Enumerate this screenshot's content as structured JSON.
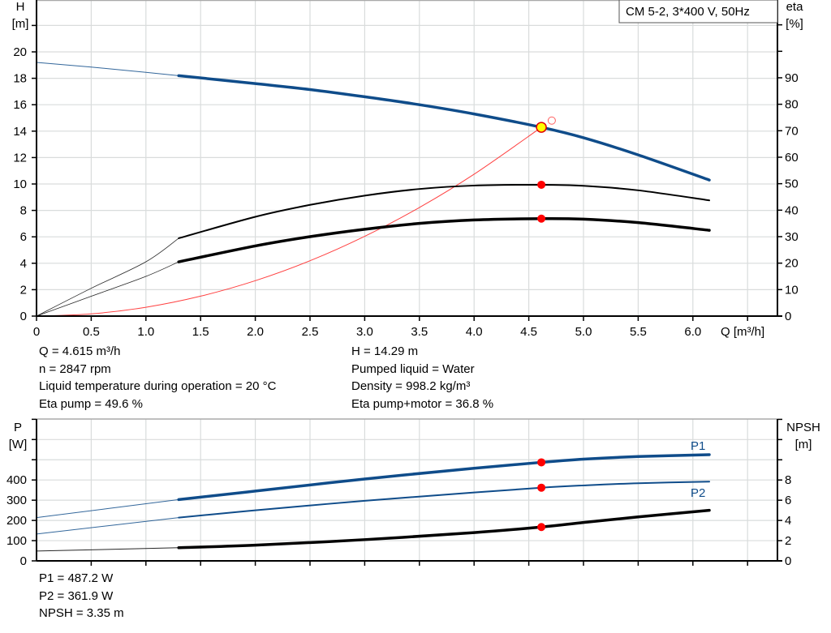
{
  "chart_data": [
    {
      "type": "line",
      "title": "CM 5-2, 3*400 V, 50Hz",
      "xlabel": "Q [m³/h]",
      "ylabel_left": [
        "H",
        "[m]"
      ],
      "ylabel_right": [
        "eta",
        "[%]"
      ],
      "xlim": [
        0,
        6.5
      ],
      "ylim_left": [
        0,
        22
      ],
      "ylim_right": [
        0,
        100
      ],
      "x_ticks": [
        "0",
        "0.5",
        "1.0",
        "1.5",
        "2.0",
        "2.5",
        "3.0",
        "3.5",
        "4.0",
        "4.5",
        "5.0",
        "5.5",
        "6.0"
      ],
      "y_ticks_left": [
        "0",
        "2",
        "4",
        "6",
        "8",
        "10",
        "12",
        "14",
        "16",
        "18",
        "20"
      ],
      "y_ticks_right": [
        "0",
        "10",
        "20",
        "30",
        "40",
        "50",
        "60",
        "70",
        "80",
        "90"
      ],
      "grid": true,
      "operating_range": [
        1.3,
        6.15
      ],
      "series": [
        {
          "axis": "left",
          "color": "#0f4c8a",
          "points": [
            [
              0,
              19.2
            ],
            [
              0.5,
              18.85
            ],
            [
              1.0,
              18.45
            ],
            [
              1.3,
              18.2
            ],
            [
              2,
              17.6
            ],
            [
              2.5,
              17.15
            ],
            [
              3,
              16.6
            ],
            [
              3.5,
              16.0
            ],
            [
              4,
              15.3
            ],
            [
              4.615,
              14.29
            ],
            [
              5,
              13.5
            ],
            [
              5.5,
              12.2
            ],
            [
              6.15,
              10.3
            ]
          ]
        },
        {
          "axis": "right",
          "color": "#000000",
          "points": [
            [
              0,
              0
            ],
            [
              0.5,
              10.5
            ],
            [
              1.0,
              20.5
            ],
            [
              1.3,
              29.4
            ],
            [
              2,
              37.5
            ],
            [
              2.5,
              42
            ],
            [
              3,
              45.5
            ],
            [
              3.5,
              48
            ],
            [
              4,
              49.3
            ],
            [
              4.615,
              49.6
            ],
            [
              5,
              49.2
            ],
            [
              5.5,
              47.5
            ],
            [
              6.15,
              43.7
            ]
          ]
        },
        {
          "axis": "right",
          "color": "#000000",
          "bold": true,
          "points": [
            [
              0,
              0
            ],
            [
              0.5,
              7.5
            ],
            [
              1,
              15
            ],
            [
              1.3,
              20.5
            ],
            [
              2,
              26.5
            ],
            [
              2.5,
              30
            ],
            [
              3,
              32.8
            ],
            [
              3.5,
              35
            ],
            [
              4,
              36.3
            ],
            [
              4.615,
              36.8
            ],
            [
              5,
              36.6
            ],
            [
              5.5,
              35.3
            ],
            [
              6.15,
              32.4
            ]
          ]
        },
        {
          "axis": "left",
          "color": "#ff4040",
          "system_curve": true,
          "points": [
            [
              0,
              0
            ],
            [
              0.5,
              0.17
            ],
            [
              1,
              0.67
            ],
            [
              1.5,
              1.51
            ],
            [
              2,
              2.68
            ],
            [
              2.5,
              4.19
            ],
            [
              3,
              6.04
            ],
            [
              3.5,
              8.22
            ],
            [
              4,
              10.74
            ],
            [
              4.615,
              14.29
            ]
          ]
        }
      ],
      "duty_point": {
        "Q": 4.615,
        "H": 14.29,
        "eta_pump": 49.6,
        "eta_total": 36.8
      },
      "requested_point": {
        "Q": 4.71,
        "H": 14.8
      }
    },
    {
      "type": "line",
      "xlabel": "",
      "ylabel_left": [
        "P",
        "[W]"
      ],
      "ylabel_right": [
        "NPSH",
        "[m]"
      ],
      "xlim": [
        0,
        6.5
      ],
      "ylim_left": [
        0,
        700
      ],
      "ylim_right": [
        0,
        14
      ],
      "y_ticks_left": [
        "0",
        "100",
        "200",
        "300",
        "400"
      ],
      "y_ticks_right": [
        "0",
        "2",
        "4",
        "6",
        "8"
      ],
      "grid": true,
      "series": [
        {
          "name": "P1",
          "axis": "left",
          "color": "#0f4c8a",
          "bold": true,
          "points": [
            [
              0,
              214
            ],
            [
              1.3,
              303
            ],
            [
              2,
              345
            ],
            [
              3,
              405
            ],
            [
              4,
              458
            ],
            [
              4.615,
              487.2
            ],
            [
              5,
              503
            ],
            [
              5.5,
              516
            ],
            [
              6.15,
              525
            ]
          ]
        },
        {
          "name": "P2",
          "axis": "left",
          "color": "#0f4c8a",
          "points": [
            [
              0,
              133
            ],
            [
              1.3,
              214
            ],
            [
              2,
              250
            ],
            [
              3,
              297
            ],
            [
              4,
              338
            ],
            [
              4.615,
              361.9
            ],
            [
              5,
              373
            ],
            [
              5.5,
              384
            ],
            [
              6.15,
              392
            ]
          ]
        },
        {
          "axis": "right",
          "color": "#000000",
          "bold": true,
          "points": [
            [
              0,
              0.97
            ],
            [
              1.3,
              1.3
            ],
            [
              2,
              1.55
            ],
            [
              3,
              2.1
            ],
            [
              4,
              2.8
            ],
            [
              4.615,
              3.35
            ],
            [
              5,
              3.8
            ],
            [
              5.5,
              4.35
            ],
            [
              6.15,
              5.0
            ]
          ]
        }
      ]
    }
  ],
  "info_top_left": [
    "Q = 4.615 m³/h",
    "n = 2847 rpm",
    "Liquid temperature during operation = 20 °C",
    "Eta pump = 49.6 %"
  ],
  "info_top_right": [
    "H = 14.29 m",
    "Pumped liquid = Water",
    "Density = 998.2 kg/m³",
    "Eta pump+motor = 36.8 %"
  ],
  "info_bottom": [
    "P1 = 487.2 W",
    "P2 = 361.9 W",
    "NPSH = 3.35 m"
  ]
}
